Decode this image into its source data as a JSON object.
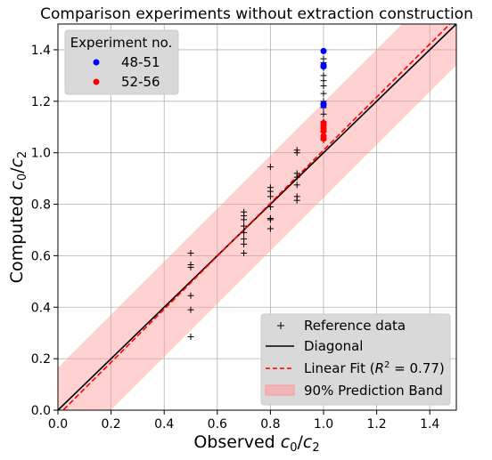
{
  "chart_data": {
    "type": "scatter",
    "title": "Comparison experiments without extraction construction",
    "xlabel": "Observed c0/c2",
    "ylabel": "Computed c0/c2",
    "xlim": [
      0.0,
      1.5
    ],
    "ylim": [
      0.0,
      1.5
    ],
    "xticks": [
      "0.0",
      "0.2",
      "0.4",
      "0.6",
      "0.8",
      "1.0",
      "1.2",
      "1.4"
    ],
    "yticks": [
      "0.0",
      "0.2",
      "0.4",
      "0.6",
      "0.8",
      "1.0",
      "1.2",
      "1.4"
    ],
    "grid": true,
    "legend_top": {
      "title": "Experiment no.",
      "placement": "upper-left"
    },
    "legend_bottom": {
      "placement": "lower-right"
    },
    "series": [
      {
        "name": "Reference data",
        "marker": "plus",
        "color": "#000000",
        "points": [
          [
            0.5,
            0.285
          ],
          [
            0.5,
            0.39
          ],
          [
            0.5,
            0.445
          ],
          [
            0.5,
            0.555
          ],
          [
            0.5,
            0.565
          ],
          [
            0.5,
            0.61
          ],
          [
            0.7,
            0.61
          ],
          [
            0.7,
            0.645
          ],
          [
            0.7,
            0.665
          ],
          [
            0.7,
            0.69
          ],
          [
            0.7,
            0.715
          ],
          [
            0.7,
            0.74
          ],
          [
            0.7,
            0.755
          ],
          [
            0.7,
            0.77
          ],
          [
            0.8,
            0.705
          ],
          [
            0.8,
            0.74
          ],
          [
            0.8,
            0.745
          ],
          [
            0.8,
            0.79
          ],
          [
            0.8,
            0.83
          ],
          [
            0.8,
            0.85
          ],
          [
            0.8,
            0.865
          ],
          [
            0.8,
            0.945
          ],
          [
            0.9,
            0.815
          ],
          [
            0.9,
            0.83
          ],
          [
            0.9,
            0.875
          ],
          [
            0.9,
            0.905
          ],
          [
            0.9,
            0.92
          ],
          [
            0.9,
            1.0
          ],
          [
            0.9,
            1.01
          ],
          [
            1.0,
            1.05
          ],
          [
            1.0,
            1.08
          ],
          [
            1.0,
            1.12
          ],
          [
            1.0,
            1.15
          ],
          [
            1.0,
            1.175
          ],
          [
            1.0,
            1.2
          ],
          [
            1.0,
            1.23
          ],
          [
            1.0,
            1.26
          ],
          [
            1.0,
            1.28
          ],
          [
            1.0,
            1.3
          ],
          [
            1.0,
            1.33
          ],
          [
            1.0,
            1.35
          ],
          [
            1.0,
            1.365
          ]
        ]
      },
      {
        "name": "48-51",
        "marker": "circle",
        "color": "#0000ff",
        "points": [
          [
            1.0,
            1.395
          ],
          [
            1.0,
            1.34
          ],
          [
            1.0,
            1.335
          ],
          [
            1.0,
            1.19
          ],
          [
            1.0,
            1.185
          ]
        ]
      },
      {
        "name": "52-56",
        "marker": "circle",
        "color": "#ff0000",
        "points": [
          [
            1.0,
            1.115
          ],
          [
            1.0,
            1.105
          ],
          [
            1.0,
            1.095
          ],
          [
            1.0,
            1.085
          ],
          [
            1.0,
            1.065
          ],
          [
            1.0,
            1.055
          ]
        ]
      }
    ],
    "lines": [
      {
        "name": "Diagonal",
        "style": "solid",
        "color": "#000000",
        "slope": 1.0,
        "intercept": 0.0
      },
      {
        "name": "Linear Fit (R² = 0.77)",
        "style": "dashed",
        "color": "#ff0000",
        "slope": 1.03,
        "intercept": -0.02
      }
    ],
    "band": {
      "name": "90% Prediction Band",
      "color": "#ff9999",
      "slope": 1.03,
      "intercept": -0.02,
      "half_width": 0.185
    }
  }
}
